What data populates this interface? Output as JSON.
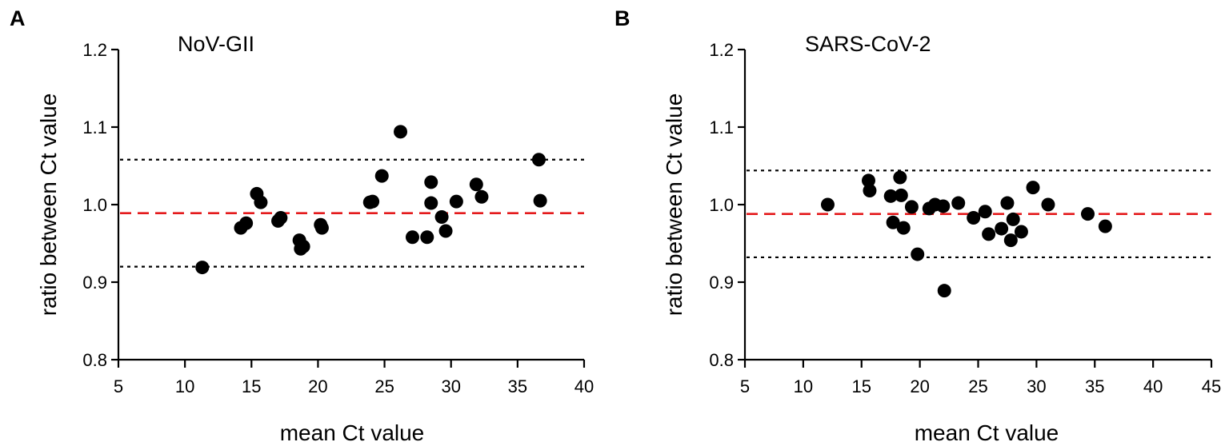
{
  "chart_data": [
    {
      "panel": "A",
      "type": "scatter",
      "title": "NoV-GII",
      "xlabel": "mean Ct value",
      "ylabel": "ratio between Ct value",
      "xlim": [
        5,
        40
      ],
      "ylim": [
        0.8,
        1.2
      ],
      "xticks": [
        5,
        10,
        15,
        20,
        25,
        30,
        35,
        40
      ],
      "yticks": [
        0.8,
        0.9,
        1.0,
        1.1,
        1.2
      ],
      "xtick_labels": [
        "5",
        "10",
        "15",
        "20",
        "25",
        "30",
        "35",
        "40"
      ],
      "ytick_labels": [
        "0.8",
        "0.9",
        "1.0",
        "1.1",
        "1.2"
      ],
      "mean_line": 0.989,
      "upper_limit": 1.058,
      "lower_limit": 0.92,
      "line_colors": {
        "mean": "#e41a1c",
        "limits": "#000000"
      },
      "points": [
        {
          "x": 11.3,
          "y": 0.919
        },
        {
          "x": 14.2,
          "y": 0.97
        },
        {
          "x": 14.6,
          "y": 0.976
        },
        {
          "x": 15.4,
          "y": 1.014
        },
        {
          "x": 15.7,
          "y": 1.003
        },
        {
          "x": 17.0,
          "y": 0.979
        },
        {
          "x": 17.2,
          "y": 0.983
        },
        {
          "x": 18.6,
          "y": 0.954
        },
        {
          "x": 18.7,
          "y": 0.943
        },
        {
          "x": 18.9,
          "y": 0.946
        },
        {
          "x": 20.2,
          "y": 0.974
        },
        {
          "x": 20.3,
          "y": 0.97
        },
        {
          "x": 23.9,
          "y": 1.003
        },
        {
          "x": 24.1,
          "y": 1.004
        },
        {
          "x": 24.8,
          "y": 1.037
        },
        {
          "x": 26.2,
          "y": 1.094
        },
        {
          "x": 27.1,
          "y": 0.958
        },
        {
          "x": 28.2,
          "y": 0.958
        },
        {
          "x": 28.5,
          "y": 1.029
        },
        {
          "x": 28.5,
          "y": 1.002
        },
        {
          "x": 29.3,
          "y": 0.984
        },
        {
          "x": 29.6,
          "y": 0.966
        },
        {
          "x": 30.4,
          "y": 1.004
        },
        {
          "x": 31.9,
          "y": 1.026
        },
        {
          "x": 32.3,
          "y": 1.01
        },
        {
          "x": 36.6,
          "y": 1.058
        },
        {
          "x": 36.7,
          "y": 1.005
        }
      ]
    },
    {
      "panel": "B",
      "type": "scatter",
      "title": "SARS-CoV-2",
      "xlabel": "mean Ct value",
      "ylabel": "ratio between Ct value",
      "xlim": [
        5,
        45
      ],
      "ylim": [
        0.8,
        1.2
      ],
      "xticks": [
        5,
        10,
        15,
        20,
        25,
        30,
        35,
        40,
        45
      ],
      "yticks": [
        0.8,
        0.9,
        1.0,
        1.1,
        1.2
      ],
      "xtick_labels": [
        "5",
        "10",
        "15",
        "20",
        "25",
        "30",
        "35",
        "40",
        "45"
      ],
      "ytick_labels": [
        "0.8",
        "0.9",
        "1.0",
        "1.1",
        "1.2"
      ],
      "mean_line": 0.988,
      "upper_limit": 1.044,
      "lower_limit": 0.932,
      "line_colors": {
        "mean": "#e41a1c",
        "limits": "#000000"
      },
      "points": [
        {
          "x": 12.1,
          "y": 1.0
        },
        {
          "x": 15.6,
          "y": 1.031
        },
        {
          "x": 15.7,
          "y": 1.018
        },
        {
          "x": 17.5,
          "y": 1.011
        },
        {
          "x": 17.7,
          "y": 0.977
        },
        {
          "x": 18.3,
          "y": 1.035
        },
        {
          "x": 18.4,
          "y": 1.012
        },
        {
          "x": 18.6,
          "y": 0.97
        },
        {
          "x": 19.3,
          "y": 0.997
        },
        {
          "x": 19.8,
          "y": 0.936
        },
        {
          "x": 20.8,
          "y": 0.995
        },
        {
          "x": 21.3,
          "y": 1.0
        },
        {
          "x": 22.0,
          "y": 0.998
        },
        {
          "x": 22.1,
          "y": 0.889
        },
        {
          "x": 23.3,
          "y": 1.002
        },
        {
          "x": 24.6,
          "y": 0.983
        },
        {
          "x": 25.6,
          "y": 0.991
        },
        {
          "x": 25.9,
          "y": 0.962
        },
        {
          "x": 27.0,
          "y": 0.969
        },
        {
          "x": 27.5,
          "y": 1.002
        },
        {
          "x": 27.8,
          "y": 0.954
        },
        {
          "x": 28.0,
          "y": 0.981
        },
        {
          "x": 28.7,
          "y": 0.965
        },
        {
          "x": 29.7,
          "y": 1.022
        },
        {
          "x": 31.0,
          "y": 1.0
        },
        {
          "x": 34.4,
          "y": 0.988
        },
        {
          "x": 35.9,
          "y": 0.972
        }
      ]
    }
  ]
}
